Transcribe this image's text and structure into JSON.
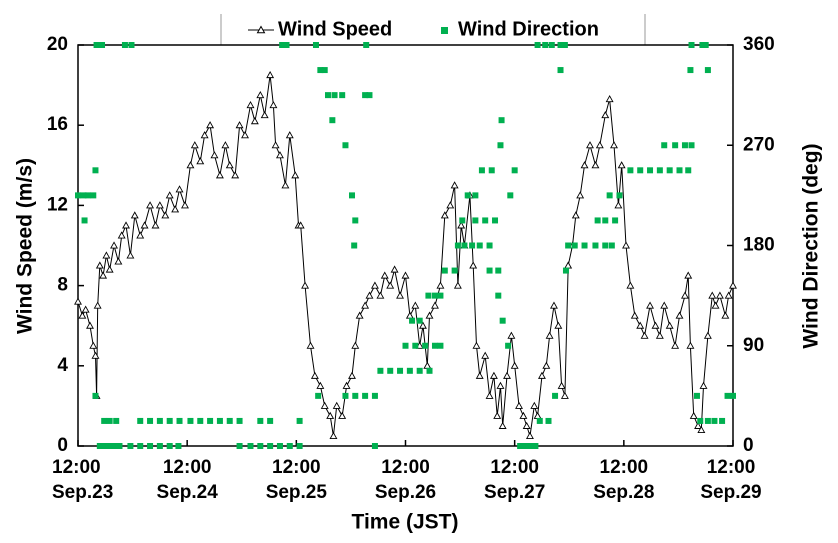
{
  "chart_data": {
    "type": "line",
    "xlabel": "Time (JST)",
    "ylabel": "Wind Speed (m/s)",
    "y2label": "Wind Direction (deg)",
    "legend": "upper center",
    "xlim": [
      0,
      6
    ],
    "xticks": [
      {
        "value": 0,
        "label": "12:00 Sep.23"
      },
      {
        "value": 1,
        "label": "12:00 Sep.24"
      },
      {
        "value": 2,
        "label": "12:00 Sep.25"
      },
      {
        "value": 3,
        "label": "12:00 Sep.26"
      },
      {
        "value": 4,
        "label": "12:00 Sep.27"
      },
      {
        "value": 5,
        "label": "12:00 Sep.28"
      },
      {
        "value": 6,
        "label": "12:00 Sep.29"
      }
    ],
    "ylim": [
      0,
      20
    ],
    "yticks": [
      0,
      4,
      8,
      12,
      16,
      20
    ],
    "y2lim": [
      0,
      360
    ],
    "y2ticks": [
      0,
      90,
      180,
      270,
      360
    ],
    "series": [
      {
        "name": "Wind Speed",
        "type": "line",
        "color": "#000000",
        "x": [
          0,
          0.04,
          0.07,
          0.11,
          0.14,
          0.16,
          0.17,
          0.18,
          0.2,
          0.23,
          0.26,
          0.29,
          0.33,
          0.37,
          0.4,
          0.44,
          0.48,
          0.52,
          0.57,
          0.61,
          0.66,
          0.71,
          0.75,
          0.8,
          0.84,
          0.89,
          0.93,
          0.98,
          1.03,
          1.07,
          1.12,
          1.16,
          1.21,
          1.25,
          1.3,
          1.35,
          1.39,
          1.44,
          1.48,
          1.53,
          1.58,
          1.62,
          1.67,
          1.71,
          1.76,
          1.79,
          1.81,
          1.85,
          1.9,
          1.94,
          1.99,
          2.02,
          2.04,
          2.08,
          2.13,
          2.17,
          2.22,
          2.26,
          2.31,
          2.34,
          2.37,
          2.42,
          2.46,
          2.51,
          2.54,
          2.58,
          2.63,
          2.67,
          2.72,
          2.77,
          2.81,
          2.86,
          2.9,
          2.95,
          3.0,
          3.04,
          3.09,
          3.13,
          3.16,
          3.2,
          3.22,
          3.27,
          3.32,
          3.36,
          3.41,
          3.45,
          3.48,
          3.51,
          3.54,
          3.59,
          3.62,
          3.65,
          3.68,
          3.73,
          3.77,
          3.81,
          3.84,
          3.87,
          3.89,
          3.93,
          3.97,
          4.0,
          4.04,
          4.08,
          4.11,
          4.14,
          4.18,
          4.21,
          4.25,
          4.29,
          4.32,
          4.36,
          4.4,
          4.43,
          4.46,
          4.49,
          4.53,
          4.56,
          4.6,
          4.64,
          4.69,
          4.74,
          4.78,
          4.83,
          4.87,
          4.91,
          4.95,
          4.98,
          5.02,
          5.06,
          5.1,
          5.15,
          5.19,
          5.24,
          5.29,
          5.33,
          5.37,
          5.42,
          5.47,
          5.51,
          5.56,
          5.59,
          5.61,
          5.64,
          5.68,
          5.71,
          5.73,
          5.77,
          5.81,
          5.84,
          5.88,
          5.93,
          5.96,
          6.0
        ],
        "values": [
          7.2,
          6.5,
          6.8,
          6,
          5,
          4.5,
          2.5,
          7,
          9,
          8.5,
          9.5,
          8.8,
          10,
          9.2,
          10.5,
          11,
          9.5,
          11.5,
          10.5,
          11,
          12,
          11,
          12,
          11.5,
          12.5,
          11.8,
          12.8,
          12,
          14,
          15,
          14.2,
          15.5,
          16,
          14.5,
          13.5,
          15,
          14,
          13.5,
          16,
          15.5,
          17,
          16.2,
          17.5,
          16.5,
          18.5,
          17,
          15,
          14.5,
          13,
          15.5,
          13.5,
          11,
          11,
          8,
          5,
          3.5,
          3,
          2,
          1.5,
          0.5,
          2,
          1.5,
          3,
          3.5,
          5,
          6.5,
          7,
          7.5,
          8,
          7.5,
          8.5,
          8,
          8.8,
          7.5,
          8.5,
          6.5,
          7,
          5,
          6,
          4,
          6.5,
          7,
          8,
          11.5,
          12,
          13,
          8,
          11,
          10,
          12.5,
          9,
          5,
          3.5,
          4.5,
          2.5,
          3.5,
          1.5,
          3,
          1,
          3.5,
          5.5,
          4,
          2,
          1.5,
          1,
          0.5,
          2,
          1.5,
          3.5,
          4,
          5.5,
          7,
          6,
          3,
          2.5,
          9,
          10,
          11.5,
          12.5,
          14,
          15,
          14,
          15,
          16.5,
          17.3,
          15,
          12,
          14,
          10,
          8,
          6.5,
          6,
          5.5,
          7,
          6,
          5.5,
          7,
          6,
          5,
          6.5,
          7.5,
          8.5,
          5,
          1.5,
          1,
          0.8,
          3,
          5.5,
          7.5,
          7,
          7.5,
          6.5,
          7.5,
          8
        ]
      },
      {
        "name": "Wind Direction",
        "type": "scatter",
        "axis": "y2",
        "color": "#00b050",
        "x": [
          0,
          0.05,
          0.09,
          0.14,
          0.06,
          0.16,
          0.16,
          0.17,
          0.22,
          0.2,
          0.25,
          0.29,
          0.34,
          0.24,
          0.29,
          0.35,
          0.43,
          0.49,
          0.38,
          0.48,
          0.57,
          0.66,
          0.75,
          0.84,
          0.92,
          0.57,
          0.66,
          0.75,
          0.84,
          0.93,
          1.03,
          1.12,
          1.21,
          1.3,
          1.39,
          1.48,
          1.48,
          1.58,
          1.67,
          1.76,
          1.85,
          1.94,
          1.67,
          1.76,
          1.87,
          1.91,
          2.03,
          2.03,
          2.18,
          2.22,
          2.26,
          2.2,
          2.29,
          2.35,
          2.42,
          2.33,
          2.45,
          2.51,
          2.54,
          2.53,
          2.64,
          2.63,
          2.67,
          2.45,
          2.54,
          2.63,
          2.72,
          2.72,
          2.77,
          2.86,
          2.95,
          3.04,
          3.13,
          3.22,
          3.0,
          3.09,
          3.18,
          3.27,
          3.32,
          3.06,
          3.13,
          3.21,
          3.27,
          3.32,
          3.36,
          3.45,
          3.48,
          3.54,
          3.61,
          3.68,
          3.77,
          3.52,
          3.57,
          3.64,
          3.64,
          3.73,
          3.82,
          3.7,
          3.79,
          3.77,
          3.85,
          3.85,
          3.89,
          3.94,
          3.87,
          3.88,
          3.96,
          4.0,
          4.05,
          4.09,
          4.14,
          4.19,
          4.21,
          4.28,
          4.34,
          4.42,
          4.46,
          4.23,
          4.31,
          4.37,
          4.42,
          4.47,
          4.49,
          4.55,
          4.64,
          4.74,
          4.83,
          4.89,
          4.76,
          4.83,
          4.92,
          4.87,
          4.96,
          5.06,
          5.15,
          5.24,
          5.33,
          5.42,
          5.51,
          5.59,
          5.37,
          5.47,
          5.56,
          5.62,
          5.61,
          5.62,
          5.67,
          5.7,
          5.72,
          5.75,
          5.77,
          5.77,
          5.83,
          5.9,
          5.95,
          6.0
        ],
        "values": [
          225,
          225,
          225,
          225,
          202.5,
          247.5,
          45,
          360,
          360,
          0,
          0,
          0,
          0,
          22.5,
          22.5,
          22.5,
          360,
          360,
          0,
          0,
          0,
          0,
          0,
          0,
          0,
          22.5,
          22.5,
          22.5,
          22.5,
          22.5,
          22.5,
          22.5,
          22.5,
          22.5,
          22.5,
          22.5,
          0,
          0,
          0,
          0,
          0,
          0,
          22.5,
          22.5,
          360,
          360,
          22.5,
          0,
          360,
          337.5,
          337.5,
          45,
          315,
          315,
          315,
          292.5,
          270,
          225,
          202.5,
          180,
          360,
          315,
          315,
          45,
          45,
          45,
          45,
          0,
          67.5,
          67.5,
          67.5,
          67.5,
          67.5,
          67.5,
          90,
          90,
          90,
          90,
          90,
          112.5,
          112.5,
          135,
          135,
          135,
          157.5,
          157.5,
          180,
          180,
          180,
          180,
          180,
          202.5,
          225,
          225,
          202.5,
          202.5,
          202.5,
          247.5,
          247.5,
          157.5,
          157.5,
          135,
          112.5,
          90,
          270,
          292.5,
          225,
          247.5,
          0,
          0,
          0,
          0,
          360,
          360,
          360,
          360,
          360,
          22.5,
          22.5,
          45,
          337.5,
          157.5,
          180,
          180,
          180,
          180,
          180,
          180,
          202.5,
          202.5,
          202.5,
          225,
          225,
          247.5,
          247.5,
          247.5,
          247.5,
          247.5,
          247.5,
          247.5,
          270,
          270,
          270,
          270,
          337.5,
          360,
          45,
          22.5,
          360,
          360,
          337.5,
          22.5,
          22.5,
          22.5,
          45,
          45
        ]
      }
    ]
  }
}
